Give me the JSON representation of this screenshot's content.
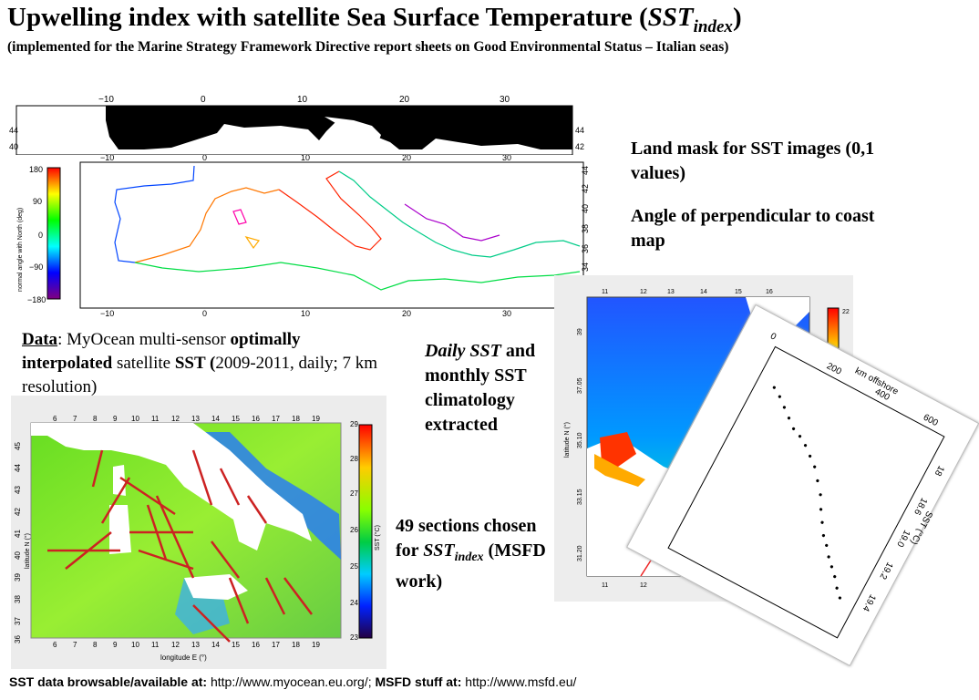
{
  "title": {
    "main": "Upwelling index with satellite Sea Surface Temperature (",
    "italic": "SST",
    "sub": "index",
    "close": ")"
  },
  "subtitle": "(implemented for the Marine Strategy Framework Directive report sheets on Good Environmental Status – Italian seas)",
  "notes": {
    "land_mask": "Land mask for SST images (0,1 values)",
    "angle": "Angle of perpendicular to coast map",
    "daily_italic": "Daily SST",
    "daily_rest": "and monthly SST climatology extracted",
    "sections_a": "49 sections chosen for",
    "sections_italic": "SST",
    "sections_sub": "index",
    "sections_b": " (MSFD work)"
  },
  "data_text": {
    "data_label": "Data",
    "p1": ": MyOcean multi-sensor ",
    "optimally": "optimally interpolated",
    "p2": " satellite ",
    "sst": "SST (",
    "p3": "2009-2011, daily; 7 km resolution)"
  },
  "footer": {
    "label1": "SST data browsable/available at:",
    "url1": " http://www.myocean.eu.org/; ",
    "label2": "MSFD stuff at:",
    "url2": " http://www.msfd.eu/"
  },
  "mask_map": {
    "lon_ticks": [
      "−10",
      "0",
      "10",
      "20",
      "30"
    ],
    "lat_ticks": [
      "40",
      "42",
      "44"
    ]
  },
  "angle_map": {
    "lon_ticks": [
      "−10",
      "0",
      "10",
      "20",
      "30"
    ],
    "lat_ticks": [
      "32",
      "34",
      "36",
      "38",
      "40",
      "42",
      "44"
    ],
    "colorbar_ticks": [
      "180",
      "90",
      "0",
      "−90",
      "−180"
    ],
    "colorbar_label": "normal angle with North (deg)"
  },
  "sst_map": {
    "lon_ticks": [
      "6",
      "7",
      "8",
      "9",
      "10",
      "11",
      "12",
      "13",
      "14",
      "15",
      "16",
      "17",
      "18",
      "19"
    ],
    "lat_ticks": [
      "45",
      "44",
      "43",
      "42",
      "41",
      "40",
      "39",
      "38",
      "37",
      "36"
    ],
    "colorbar_ticks": [
      "29",
      "28",
      "27",
      "26",
      "25",
      "24",
      "23"
    ],
    "colorbar_label": "SST (°C)",
    "xlabel": "longitude E (°)",
    "ylabel": "latitude N (°)"
  },
  "zoom_map": {
    "lon_ticks": [
      "11",
      "12",
      "13",
      "14",
      "15",
      "16"
    ],
    "lat_ticks": [
      "39",
      "37.05",
      "35.10",
      "33.15",
      "31.20"
    ],
    "colorbar_ticks": [
      "22",
      "21"
    ],
    "ylabel": "latitude N (°)"
  },
  "profile_plot": {
    "xlabel": "km offshore",
    "ylabel": "SST (°C)",
    "x_ticks": [
      "0",
      "200",
      "400",
      "600"
    ],
    "y_ticks": [
      "18",
      "18.6",
      "19.0",
      "19.2",
      "19.4"
    ]
  },
  "colors": {
    "land": "#000000",
    "accent_red": "#cc2222"
  }
}
